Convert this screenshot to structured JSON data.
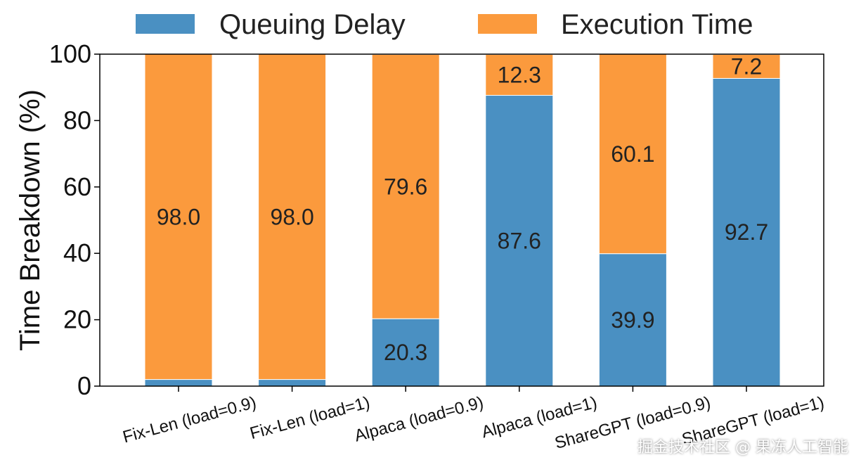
{
  "chart_data": {
    "type": "bar",
    "stacked": true,
    "categories": [
      "Fix-Len (load=0.9)",
      "Fix-Len (load=1)",
      "Alpaca (load=0.9)",
      "Alpaca (load=1)",
      "ShareGPT (load=0.9)",
      "ShareGPT (load=1)"
    ],
    "series": [
      {
        "name": "Queuing Delay",
        "color": "#4a90c2",
        "values": [
          2.0,
          2.0,
          20.3,
          87.6,
          39.9,
          92.7
        ],
        "labels": [
          "",
          "",
          "20.3",
          "87.6",
          "39.9",
          "92.7"
        ]
      },
      {
        "name": "Execution Time",
        "color": "#fb9a3d",
        "values": [
          98.0,
          98.0,
          79.6,
          12.3,
          60.1,
          7.2
        ],
        "labels": [
          "98.0",
          "98.0",
          "79.6",
          "12.3",
          "60.1",
          "7.2"
        ]
      }
    ],
    "ylabel": "Time Breakdown (%)",
    "xlabel": "",
    "ylim": [
      0,
      100
    ],
    "yticks": [
      "0",
      "20",
      "40",
      "60",
      "80",
      "100"
    ],
    "grid": false,
    "legend_position": "top"
  },
  "watermark": "掘金技术社区 @ 果冻人工智能"
}
